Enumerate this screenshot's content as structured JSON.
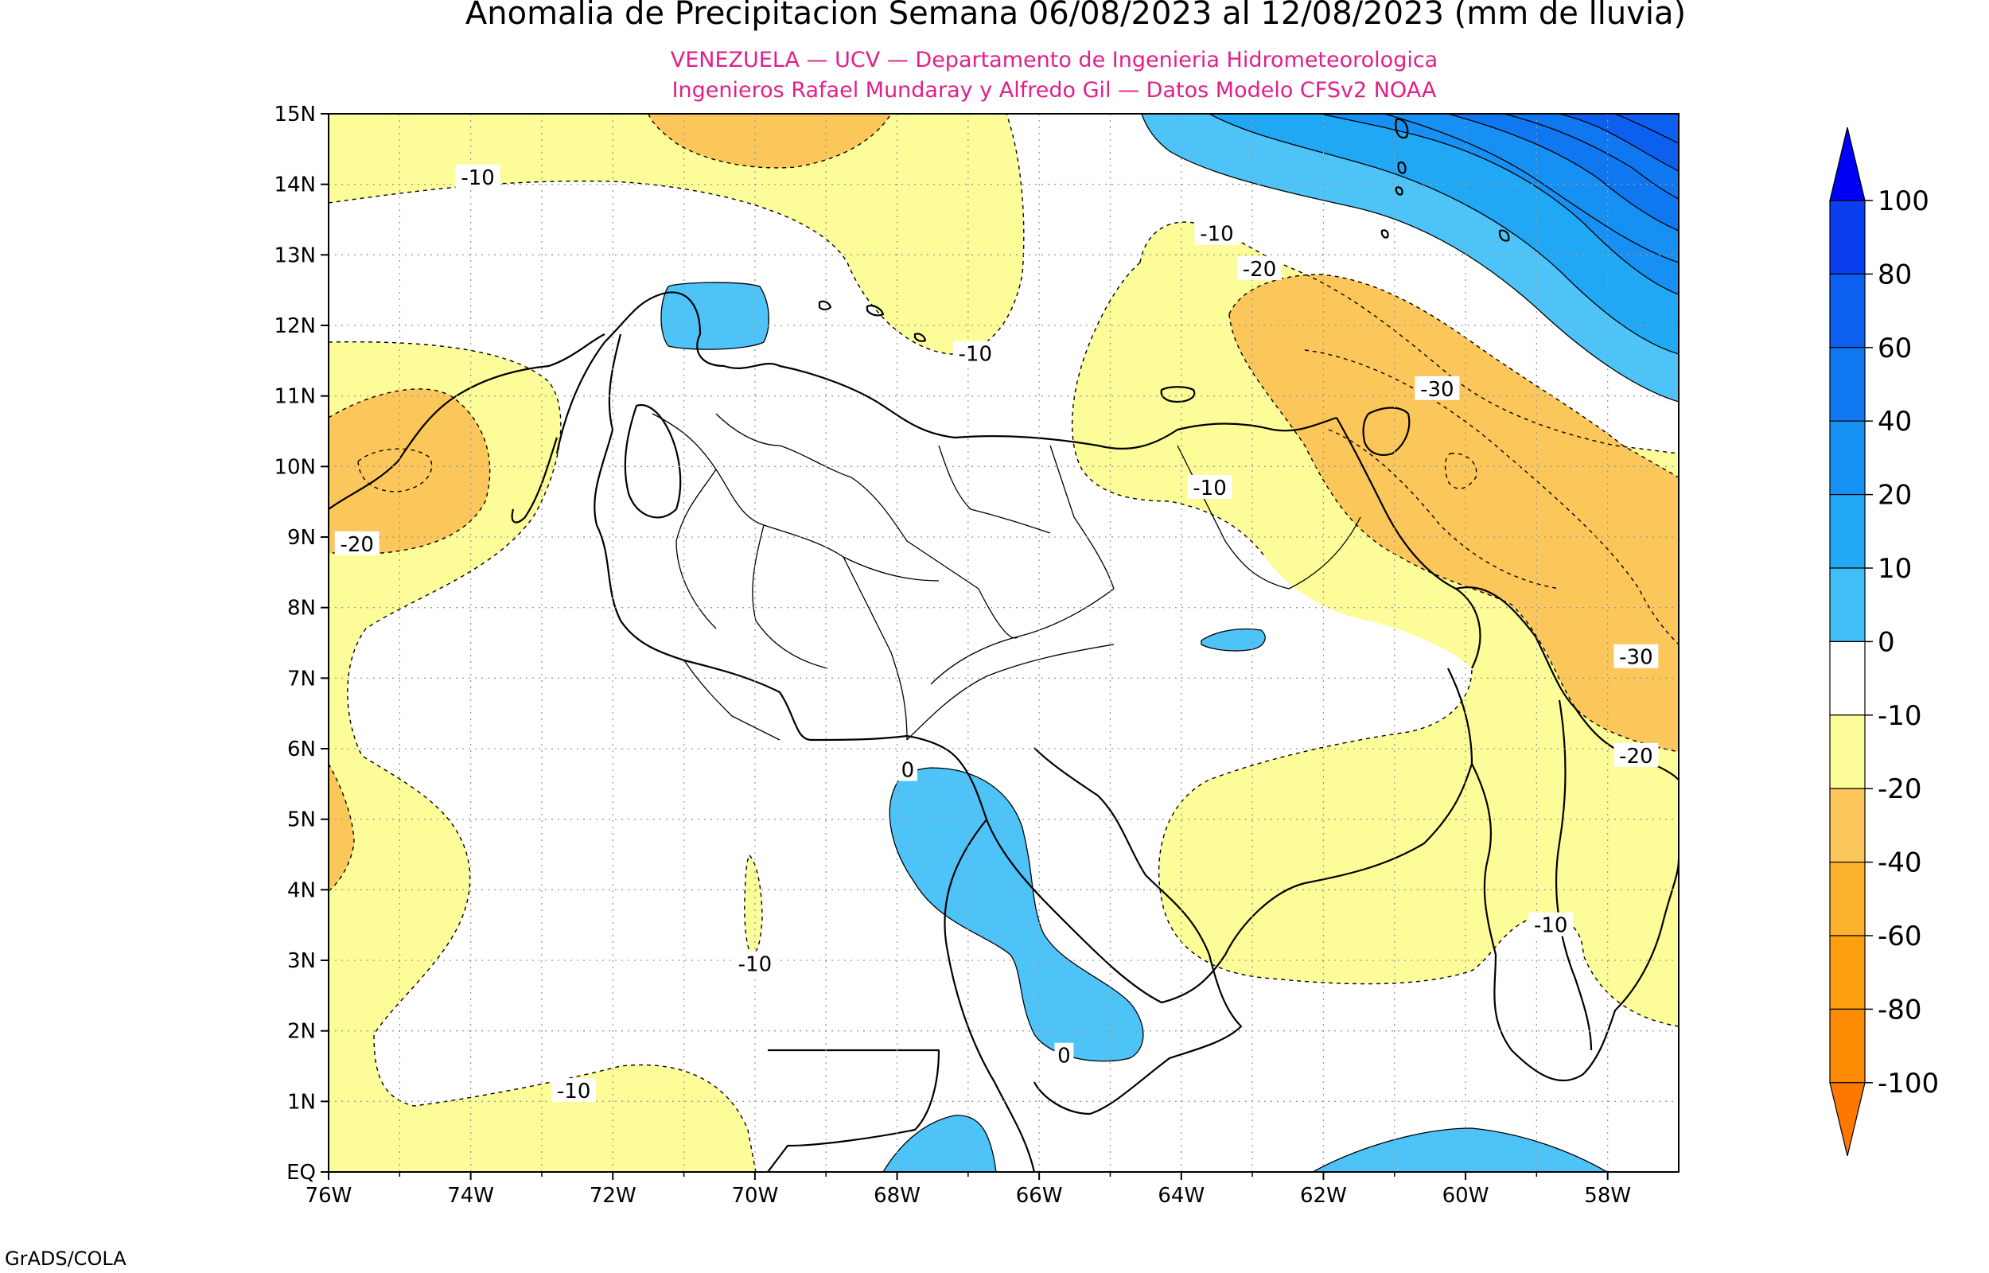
{
  "title": "Anomalia de Precipitacion Semana 06/08/2023 al 12/08/2023 (mm de lluvia)",
  "subtitle_line1": "VENEZUELA — UCV — Departamento de Ingenieria Hidrometeorologica",
  "subtitle_line2": "Ingenieros Rafael Mundaray y Alfredo Gil — Datos Modelo CFSv2 NOAA",
  "credit": "GrADS/COLA",
  "map": {
    "lon_range": [
      -76,
      -57
    ],
    "lat_range": [
      0,
      15
    ],
    "x_ticks": [
      {
        "lon": -76,
        "label": "76W"
      },
      {
        "lon": -74,
        "label": "74W"
      },
      {
        "lon": -72,
        "label": "72W"
      },
      {
        "lon": -70,
        "label": "70W"
      },
      {
        "lon": -68,
        "label": "68W"
      },
      {
        "lon": -66,
        "label": "66W"
      },
      {
        "lon": -64,
        "label": "64W"
      },
      {
        "lon": -62,
        "label": "62W"
      },
      {
        "lon": -60,
        "label": "60W"
      },
      {
        "lon": -58,
        "label": "58W"
      }
    ],
    "y_ticks": [
      {
        "lat": 0,
        "label": "EQ"
      },
      {
        "lat": 1,
        "label": "1N"
      },
      {
        "lat": 2,
        "label": "2N"
      },
      {
        "lat": 3,
        "label": "3N"
      },
      {
        "lat": 4,
        "label": "4N"
      },
      {
        "lat": 5,
        "label": "5N"
      },
      {
        "lat": 6,
        "label": "6N"
      },
      {
        "lat": 7,
        "label": "7N"
      },
      {
        "lat": 8,
        "label": "8N"
      },
      {
        "lat": 9,
        "label": "9N"
      },
      {
        "lat": 10,
        "label": "10N"
      },
      {
        "lat": 11,
        "label": "11N"
      },
      {
        "lat": 12,
        "label": "12N"
      },
      {
        "lat": 13,
        "label": "13N"
      },
      {
        "lat": 14,
        "label": "14N"
      },
      {
        "lat": 15,
        "label": "15N"
      }
    ],
    "grid": "dotted"
  },
  "contour_labels": [
    {
      "text": "-10",
      "lon": -73.9,
      "lat": 14.1
    },
    {
      "text": "-10",
      "lon": -63.5,
      "lat": 13.3
    },
    {
      "text": "-20",
      "lon": -62.9,
      "lat": 12.8
    },
    {
      "text": "-10",
      "lon": -66.9,
      "lat": 11.6
    },
    {
      "text": "-30",
      "lon": -60.4,
      "lat": 11.1
    },
    {
      "text": "-10",
      "lon": -63.6,
      "lat": 9.7
    },
    {
      "text": "-20",
      "lon": -75.6,
      "lat": 8.9
    },
    {
      "text": "-30",
      "lon": -57.6,
      "lat": 7.3
    },
    {
      "text": "-20",
      "lon": -57.6,
      "lat": 5.9
    },
    {
      "text": "0",
      "lon": -67.85,
      "lat": 5.7
    },
    {
      "text": "-10",
      "lon": -70.0,
      "lat": 2.95
    },
    {
      "text": "-10",
      "lon": -58.8,
      "lat": 3.5
    },
    {
      "text": "0",
      "lon": -65.65,
      "lat": 1.65
    },
    {
      "text": "-10",
      "lon": -72.55,
      "lat": 1.15
    }
  ],
  "colorbar": {
    "labels": [
      "100",
      "80",
      "60",
      "40",
      "20",
      "10",
      "0",
      "-10",
      "-20",
      "-40",
      "-60",
      "-80",
      "-100"
    ],
    "colors": [
      "#0a3ff0",
      "#0d5ff0",
      "#0f78f0",
      "#1690f3",
      "#20a8f5",
      "#3fbff6",
      "#ffffff",
      "#fcfc98",
      "#fcc75a",
      "#fcb22d",
      "#fca00f",
      "#fc8a02"
    ],
    "top_triangle_color": "#0000f5",
    "bottom_triangle_color": "#fc7800"
  },
  "colors": {
    "white": "#ffffff",
    "yellow": "#fcfc98",
    "orange": "#fcc75a",
    "blue_light": "#4ec3f8",
    "blue_mid": "#20a8f5",
    "blue_dark": "#0f78f0"
  }
}
